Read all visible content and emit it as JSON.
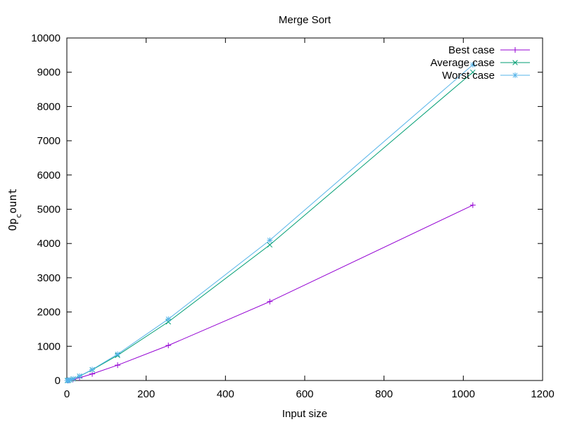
{
  "chart_data": {
    "type": "line",
    "title": "Merge Sort",
    "xlabel": "Input size",
    "ylabel_main": "Op",
    "ylabel_sub": "c",
    "ylabel_tail": "ount",
    "xlim": [
      0,
      1200
    ],
    "ylim": [
      0,
      10000
    ],
    "x_ticks": [
      0,
      200,
      400,
      600,
      800,
      1000,
      1200
    ],
    "y_ticks": [
      0,
      1000,
      2000,
      3000,
      4000,
      5000,
      6000,
      7000,
      8000,
      9000,
      10000
    ],
    "grid": false,
    "legend_position": "top-right",
    "x": [
      1,
      2,
      4,
      8,
      16,
      32,
      64,
      128,
      256,
      512,
      1024
    ],
    "series": [
      {
        "name": "Best case",
        "color": "#9400d3",
        "marker": "plus",
        "values": [
          0,
          1,
          4,
          12,
          32,
          80,
          192,
          448,
          1024,
          2304,
          5120
        ]
      },
      {
        "name": "Average case",
        "color": "#009e73",
        "marker": "cross",
        "values": [
          0,
          1,
          5,
          17,
          48,
          126,
          313,
          735,
          1712,
          3960,
          9000
        ]
      },
      {
        "name": "Worst case",
        "color": "#56b4e9",
        "marker": "star",
        "values": [
          0,
          1,
          5,
          17,
          49,
          129,
          321,
          769,
          1793,
          4097,
          9217
        ]
      }
    ]
  }
}
